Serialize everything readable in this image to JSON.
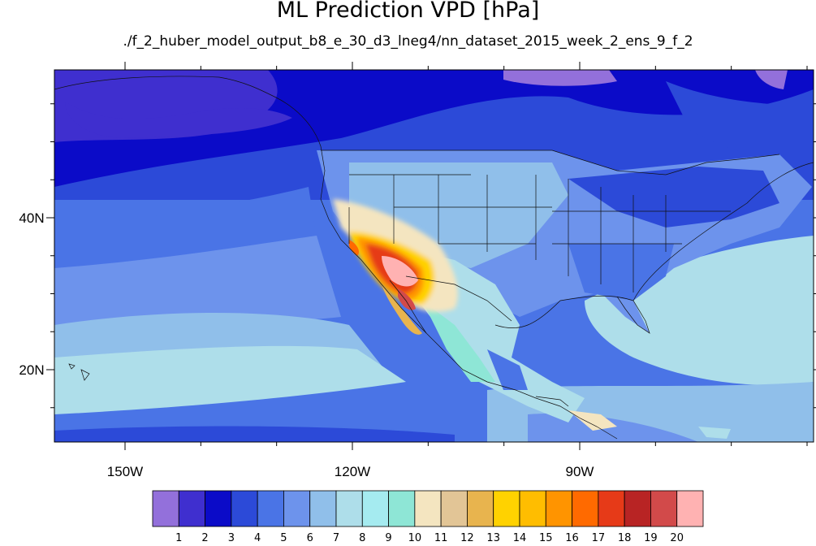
{
  "title": "ML Prediction VPD [hPa]",
  "subtitle": "./f_2_huber_model_output_b8_e_30_d3_lneg4/nn_dataset_2015_week_2_ens_9_f_2",
  "map": {
    "projection": "cylindrical-equidistant",
    "region": "North Pacific / North America",
    "lat_ticks": [
      {
        "label": "20N",
        "value": 20
      },
      {
        "label": "40N",
        "value": 40
      }
    ],
    "lon_ticks": [
      {
        "label": "150W",
        "value": -150
      },
      {
        "label": "120W",
        "value": -120
      },
      {
        "label": "90W",
        "value": -90
      }
    ],
    "overlays": [
      "coastlines",
      "country-borders",
      "us-state-borders"
    ]
  },
  "colorbar": {
    "levels": [
      "1",
      "2",
      "3",
      "4",
      "5",
      "6",
      "7",
      "8",
      "9",
      "10",
      "11",
      "12",
      "13",
      "14",
      "15",
      "16",
      "17",
      "18",
      "19",
      "20"
    ],
    "colors": [
      "#9370db",
      "#3f2fcf",
      "#0b0bc8",
      "#2c4ad8",
      "#4a74e6",
      "#6d93ec",
      "#90bfea",
      "#aedeea",
      "#a5ebf0",
      "#8ee6d6",
      "#f4e5c0",
      "#e2c596",
      "#e8b44e",
      "#ffd200",
      "#ffbd00",
      "#ff9400",
      "#ff6a00",
      "#e63a18",
      "#b82424",
      "#d24a4a",
      "#ffb2b2"
    ]
  }
}
